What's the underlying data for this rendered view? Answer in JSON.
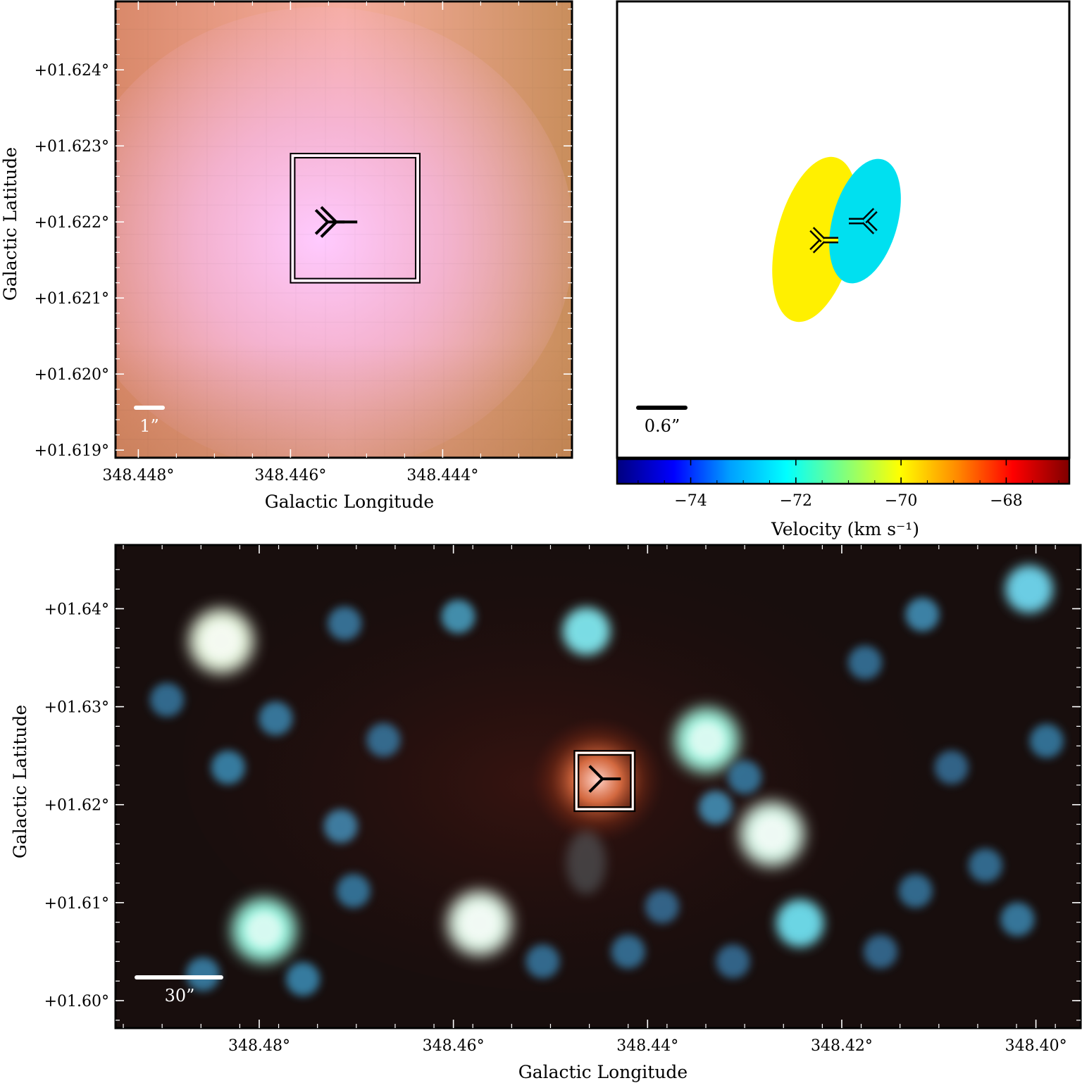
{
  "chart_data": [
    {
      "type": "heatmap",
      "panel": "top-left",
      "xlabel": "Galactic Longitude",
      "ylabel": "Galactic Latitude",
      "x_ticks": [
        "348.448°",
        "348.446°",
        "348.444°"
      ],
      "y_ticks": [
        "+01.624°",
        "+01.623°",
        "+01.622°",
        "+01.621°",
        "+01.620°",
        "+01.619°"
      ],
      "xlim": [
        348.4483,
        348.4423
      ],
      "ylim": [
        1.6189,
        1.6249
      ],
      "scale_bar": "1”",
      "image_colors": [
        "#d0845c",
        "#f4a890",
        "#f8b8c8",
        "#ffc8ff",
        "#b88a50"
      ],
      "marker": "tri-left",
      "marker_position": {
        "l": 348.4454,
        "b": 1.622
      },
      "box": {
        "l_min": 348.446,
        "l_max": 348.4443,
        "b_min": 1.6212,
        "b_max": 1.6229
      }
    },
    {
      "type": "scatter",
      "panel": "top-right",
      "colorbar_label": "Velocity (km s⁻¹)",
      "colorbar_ticks": [
        "−74",
        "−72",
        "−70",
        "−68"
      ],
      "colorbar_tick_values": [
        -74,
        -72,
        -70,
        -68
      ],
      "colorbar_range": [
        -75.4,
        -66.8
      ],
      "colormap": [
        "#00007f",
        "#0000ff",
        "#00a0ff",
        "#00ffff",
        "#7fff7f",
        "#ffff00",
        "#ff8c00",
        "#ff0000",
        "#7f0000"
      ],
      "scale_bar": "0.6”",
      "components": [
        {
          "velocity": -70.0,
          "color": "#fff000",
          "marker": "tri-left"
        },
        {
          "velocity": -72.6,
          "color": "#00e0f0",
          "marker": "tri-right"
        }
      ]
    },
    {
      "type": "heatmap",
      "panel": "bottom",
      "xlabel": "Galactic Longitude",
      "ylabel": "Galactic Latitude",
      "x_ticks": [
        "348.48°",
        "348.46°",
        "348.44°",
        "348.42°",
        "348.40°"
      ],
      "y_ticks": [
        "+01.64°",
        "+01.63°",
        "+01.62°",
        "+01.61°",
        "+01.60°"
      ],
      "xlim": [
        348.4948,
        348.3954
      ],
      "ylim": [
        1.5972,
        1.6465
      ],
      "scale_bar": "30”",
      "marker": "tri-left",
      "marker_position": {
        "l": 348.4445,
        "b": 1.6222
      },
      "background": "#1a0e0c",
      "sources": [
        {
          "l": 348.4839,
          "b": 1.6367,
          "color": "#f0ffe8",
          "size": "large"
        },
        {
          "l": 348.4795,
          "b": 1.6072,
          "color": "#a0ffe8",
          "size": "large"
        },
        {
          "l": 348.4573,
          "b": 1.6079,
          "color": "#e8fff0",
          "size": "large"
        },
        {
          "l": 348.4339,
          "b": 1.6266,
          "color": "#a8ffe8",
          "size": "large"
        },
        {
          "l": 348.4272,
          "b": 1.617,
          "color": "#e0fff0",
          "size": "large"
        },
        {
          "l": 348.4243,
          "b": 1.6079,
          "color": "#70e0f0",
          "size": "medium"
        },
        {
          "l": 348.4463,
          "b": 1.6377,
          "color": "#80e8f0",
          "size": "medium"
        },
        {
          "l": 348.4595,
          "b": 1.6392,
          "color": "#50b8e0",
          "size": "small"
        },
        {
          "l": 348.4712,
          "b": 1.6385,
          "color": "#4090c0",
          "size": "small"
        },
        {
          "l": 348.4007,
          "b": 1.642,
          "color": "#70d8f0",
          "size": "medium"
        },
        {
          "l": 348.4117,
          "b": 1.6394,
          "color": "#4aa8d8",
          "size": "small"
        },
        {
          "l": 348.4832,
          "b": 1.6238,
          "color": "#40a0d0",
          "size": "small"
        },
        {
          "l": 348.4783,
          "b": 1.6288,
          "color": "#4098c8",
          "size": "small"
        },
        {
          "l": 348.4895,
          "b": 1.6307,
          "color": "#3a88b8",
          "size": "small"
        },
        {
          "l": 348.4672,
          "b": 1.6266,
          "color": "#3a88b8",
          "size": "small"
        },
        {
          "l": 348.4716,
          "b": 1.6178,
          "color": "#4aa0d0",
          "size": "small"
        },
        {
          "l": 348.4703,
          "b": 1.6112,
          "color": "#3a90c0",
          "size": "small"
        },
        {
          "l": 348.4755,
          "b": 1.6022,
          "color": "#40a0d0",
          "size": "small"
        },
        {
          "l": 348.4508,
          "b": 1.604,
          "color": "#3a88b8",
          "size": "small"
        },
        {
          "l": 348.4385,
          "b": 1.6096,
          "color": "#3a80b0",
          "size": "small"
        },
        {
          "l": 348.433,
          "b": 1.6197,
          "color": "#4aa8d8",
          "size": "small"
        },
        {
          "l": 348.43,
          "b": 1.6228,
          "color": "#3a90c0",
          "size": "small"
        },
        {
          "l": 348.4176,
          "b": 1.6345,
          "color": "#3a88b8",
          "size": "small"
        },
        {
          "l": 348.4087,
          "b": 1.6238,
          "color": "#3a80b0",
          "size": "small"
        },
        {
          "l": 348.4052,
          "b": 1.6138,
          "color": "#3a88b8",
          "size": "small"
        },
        {
          "l": 348.4124,
          "b": 1.6112,
          "color": "#3a88b8",
          "size": "small"
        },
        {
          "l": 348.4019,
          "b": 1.6083,
          "color": "#4098c8",
          "size": "small"
        },
        {
          "l": 348.3989,
          "b": 1.6265,
          "color": "#3a90c0",
          "size": "small"
        },
        {
          "l": 348.416,
          "b": 1.605,
          "color": "#3a80b0",
          "size": "small"
        },
        {
          "l": 348.4312,
          "b": 1.604,
          "color": "#3a80b0",
          "size": "small"
        },
        {
          "l": 348.442,
          "b": 1.605,
          "color": "#3a88b8",
          "size": "small"
        },
        {
          "l": 348.4858,
          "b": 1.6027,
          "color": "#4098c8",
          "size": "small"
        }
      ]
    }
  ]
}
